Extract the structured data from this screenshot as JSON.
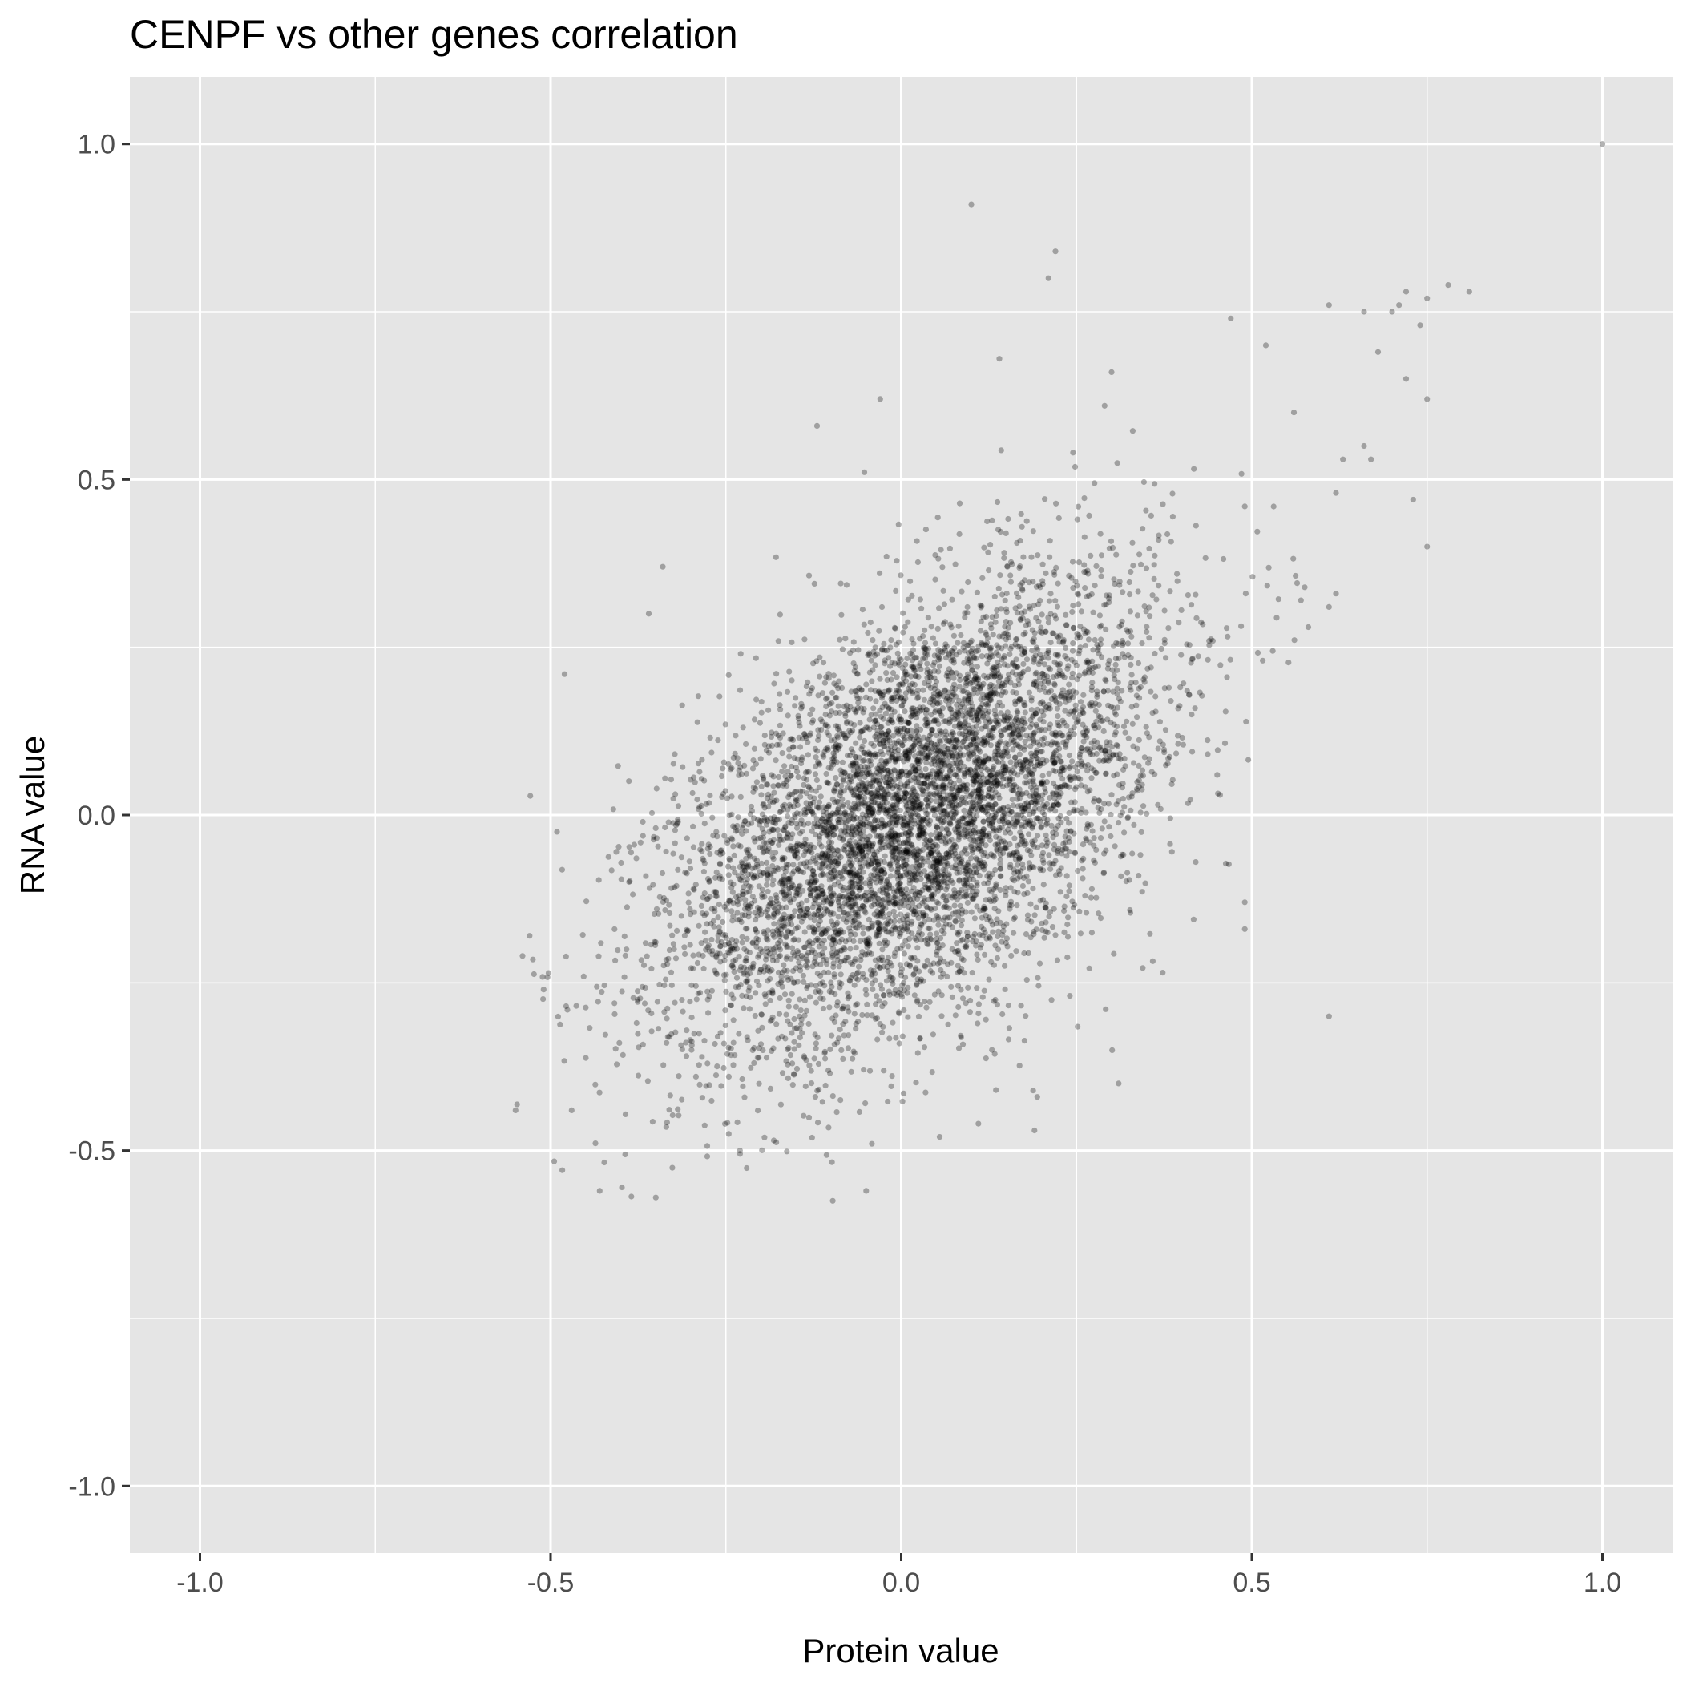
{
  "chart_data": {
    "type": "scatter",
    "title": "CENPF vs other genes correlation",
    "xlabel": "Protein value",
    "ylabel": "RNA value",
    "xlim": [
      -1.1,
      1.1
    ],
    "ylim": [
      -1.1,
      1.1
    ],
    "x_ticks": [
      -1.0,
      -0.5,
      0.0,
      0.5,
      1.0
    ],
    "x_tick_labels": [
      "-1.0",
      "-0.5",
      "0.0",
      "0.5",
      "1.0"
    ],
    "y_ticks": [
      -1.0,
      -0.5,
      0.0,
      0.5,
      1.0
    ],
    "y_tick_labels": [
      "-1.0",
      "-0.5",
      "0.0",
      "0.5",
      "1.0"
    ],
    "grid": true,
    "point_color": "#000000",
    "point_opacity": 0.3,
    "panel_background": "#e5e5e5",
    "grid_color": "#ffffff",
    "summary": {
      "n_points_approx": 6500,
      "center": [
        0.02,
        0.0
      ],
      "x_sd": 0.17,
      "y_sd": 0.17,
      "correlation": 0.52
    },
    "series": [
      {
        "x": [
          1.0,
          0.1,
          0.22,
          0.21,
          0.78,
          0.81,
          0.75,
          0.72,
          0.71,
          0.7,
          0.74,
          0.66,
          0.61,
          0.47,
          0.3,
          -0.03,
          0.14,
          0.29,
          0.52,
          0.68,
          0.72,
          0.56,
          0.63,
          0.75,
          0.62,
          0.57,
          0.67,
          0.73,
          0.75,
          0.61,
          0.62,
          0.49,
          0.66,
          0.61,
          -0.12,
          -0.34,
          -0.48,
          -0.36,
          -0.54,
          -0.53,
          -0.51,
          -0.47,
          -0.55,
          -0.43,
          -0.35,
          -0.23,
          -0.05,
          0.19,
          0.11,
          0.31,
          0.49,
          0.49,
          0.42
        ],
        "y": [
          1.0,
          0.91,
          0.84,
          0.8,
          0.79,
          0.78,
          0.77,
          0.78,
          0.76,
          0.75,
          0.73,
          0.75,
          0.76,
          0.74,
          0.66,
          0.62,
          0.68,
          0.61,
          0.7,
          0.69,
          0.65,
          0.6,
          0.53,
          0.62,
          0.48,
          0.32,
          0.53,
          0.47,
          0.4,
          0.31,
          0.33,
          0.46,
          0.55,
          -0.3,
          0.58,
          0.37,
          0.21,
          0.3,
          -0.21,
          -0.18,
          -0.26,
          -0.44,
          -0.44,
          -0.56,
          -0.57,
          -0.5,
          -0.56,
          -0.47,
          -0.46,
          -0.4,
          -0.13,
          -0.17,
          -0.07
        ]
      }
    ]
  }
}
